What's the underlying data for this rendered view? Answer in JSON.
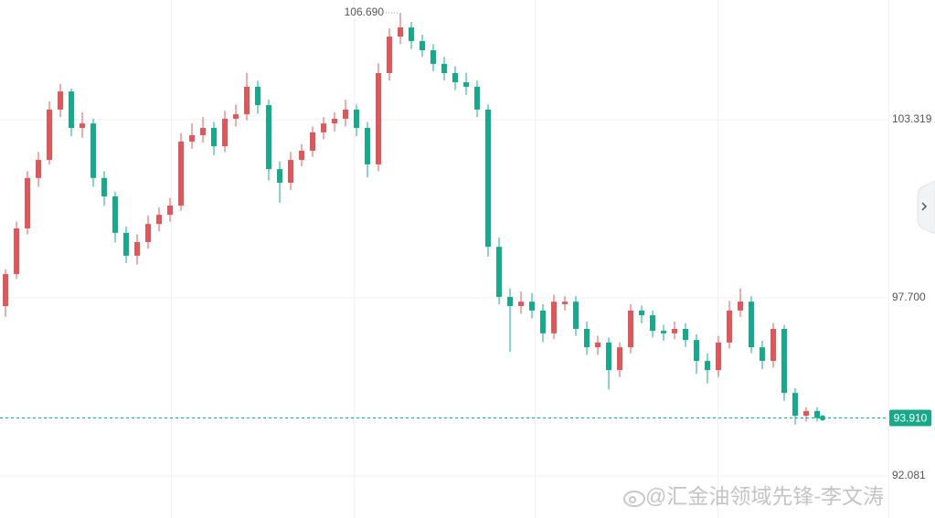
{
  "chart_data": {
    "type": "candlestick",
    "up_color": "#e0575b",
    "down_color": "#18a98b",
    "ylim": [
      90.755,
      107.095
    ],
    "yticks": [
      92.081,
      {
        "value": 97.7,
        "label": "97.700"
      },
      103.319
    ],
    "grid": true,
    "max_label": {
      "value": 106.69,
      "label": "106.690"
    },
    "last_price": {
      "value": 93.91,
      "label": "93.910"
    },
    "watermark": "@汇金油领域先锋-李文涛",
    "open": [
      97.44,
      98.45,
      99.89,
      101.48,
      102.05,
      103.64,
      104.21,
      103.06,
      103.2,
      101.48,
      100.9,
      99.75,
      99.03,
      99.46,
      100.03,
      100.32,
      100.61,
      102.63,
      102.83,
      103.06,
      102.48,
      103.35,
      103.49,
      104.36,
      103.78,
      101.76,
      101.33,
      102.05,
      102.34,
      102.92,
      103.2,
      103.35,
      103.64,
      103.06,
      101.91,
      104.79,
      105.94,
      106.23,
      105.8,
      105.51,
      105.08,
      104.79,
      104.5,
      104.36,
      103.64,
      99.31,
      97.73,
      97.44,
      97.58,
      97.3,
      96.58,
      97.5,
      97.58,
      96.72,
      96.14,
      96.29,
      95.42,
      96.14,
      97.3,
      97.15,
      96.66,
      96.58,
      96.72,
      96.37,
      95.71,
      95.42,
      96.29,
      97.3,
      97.58,
      96.14,
      95.71,
      96.72,
      94.7,
      93.98,
      94.13
    ],
    "high": [
      98.6,
      100.1,
      101.7,
      102.3,
      103.9,
      104.45,
      104.3,
      103.55,
      103.35,
      101.7,
      101.05,
      99.95,
      99.7,
      100.3,
      100.55,
      100.85,
      102.9,
      103.2,
      103.4,
      103.25,
      103.6,
      103.8,
      104.8,
      104.55,
      103.95,
      102.0,
      102.3,
      102.55,
      103.1,
      103.4,
      103.55,
      103.95,
      103.8,
      103.25,
      105.1,
      106.2,
      106.69,
      106.4,
      106.0,
      105.7,
      105.3,
      105.0,
      104.8,
      104.55,
      103.8,
      99.6,
      98.0,
      97.9,
      97.85,
      97.5,
      97.8,
      97.75,
      97.75,
      96.95,
      96.5,
      96.45,
      96.3,
      97.5,
      97.45,
      97.3,
      96.85,
      96.95,
      96.9,
      96.55,
      95.95,
      96.5,
      97.6,
      98.0,
      97.75,
      96.35,
      96.9,
      96.85,
      94.85,
      94.25,
      94.25
    ],
    "low": [
      97.1,
      98.3,
      99.7,
      101.2,
      101.9,
      103.4,
      102.8,
      102.75,
      101.2,
      100.6,
      99.45,
      98.8,
      98.75,
      99.25,
      99.8,
      100.1,
      100.45,
      102.4,
      102.6,
      102.2,
      102.3,
      103.1,
      103.3,
      103.5,
      101.4,
      100.7,
      101.1,
      101.85,
      102.15,
      102.7,
      102.95,
      103.1,
      102.8,
      101.5,
      101.7,
      104.55,
      105.7,
      105.55,
      105.3,
      104.85,
      104.55,
      104.25,
      104.1,
      103.4,
      99.0,
      97.5,
      96.0,
      97.2,
      97.05,
      96.3,
      96.4,
      97.3,
      96.5,
      95.9,
      95.9,
      94.8,
      95.2,
      95.95,
      96.9,
      96.45,
      96.35,
      96.4,
      96.15,
      95.3,
      95.0,
      95.2,
      96.1,
      97.1,
      95.95,
      95.45,
      95.5,
      94.45,
      93.7,
      93.8,
      93.8
    ],
    "close": [
      98.45,
      99.89,
      101.48,
      102.05,
      103.64,
      104.21,
      103.06,
      103.2,
      101.48,
      100.9,
      99.75,
      99.03,
      99.46,
      100.03,
      100.32,
      100.61,
      102.63,
      102.83,
      103.06,
      102.48,
      103.35,
      103.49,
      104.36,
      103.78,
      101.76,
      101.33,
      102.05,
      102.34,
      102.92,
      103.2,
      103.35,
      103.64,
      103.06,
      101.91,
      104.79,
      105.94,
      106.23,
      105.8,
      105.51,
      105.08,
      104.79,
      104.5,
      104.36,
      103.64,
      99.31,
      97.73,
      97.44,
      97.58,
      97.3,
      96.58,
      97.58,
      97.58,
      96.72,
      96.14,
      96.29,
      95.42,
      96.14,
      97.3,
      97.15,
      96.66,
      96.58,
      96.72,
      96.37,
      95.71,
      95.42,
      96.29,
      97.3,
      97.58,
      96.14,
      95.71,
      96.72,
      94.7,
      93.98,
      94.13,
      93.91
    ]
  }
}
